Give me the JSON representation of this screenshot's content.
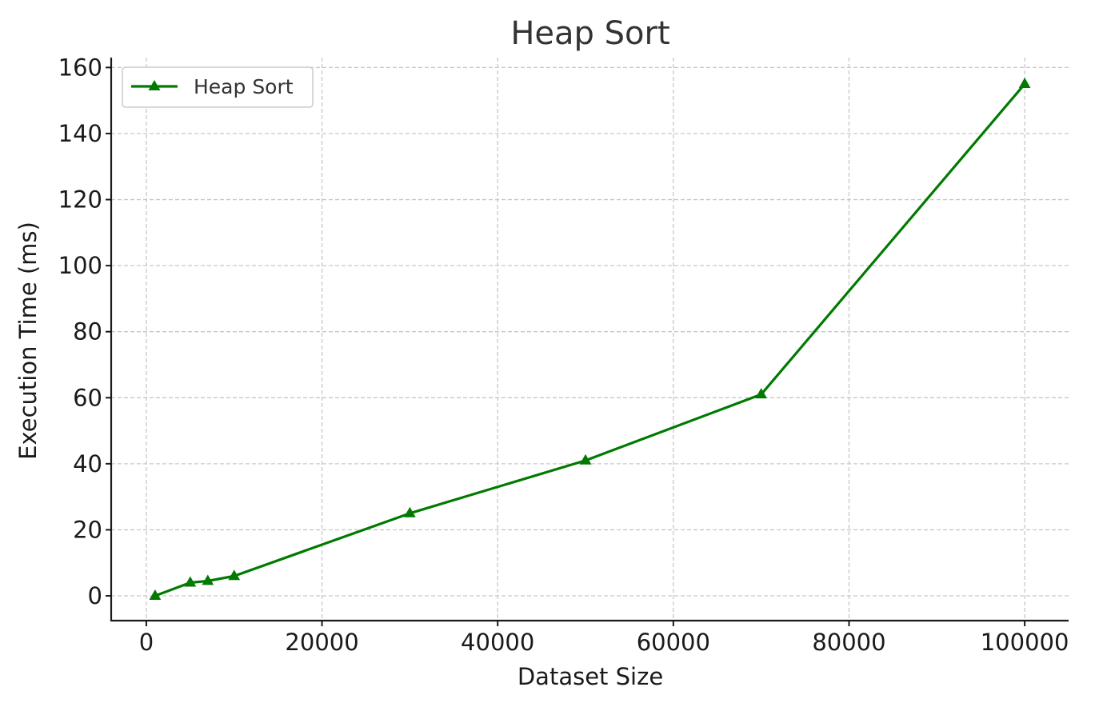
{
  "chart_data": {
    "type": "line",
    "title": "Heap Sort",
    "xlabel": "Dataset Size",
    "ylabel": "Execution Time (ms)",
    "xlim": [
      -4000,
      105000
    ],
    "ylim": [
      -7.5,
      163
    ],
    "xticks": [
      0,
      20000,
      40000,
      60000,
      80000,
      100000
    ],
    "xtick_labels": [
      "0",
      "20000",
      "40000",
      "60000",
      "80000",
      "100000"
    ],
    "yticks": [
      0,
      20,
      40,
      60,
      80,
      100,
      120,
      140,
      160
    ],
    "ytick_labels": [
      "0",
      "20",
      "40",
      "60",
      "80",
      "100",
      "120",
      "140",
      "160"
    ],
    "grid": true,
    "legend_position": "top-left",
    "series": [
      {
        "name": "Heap Sort",
        "color": "#007a00",
        "marker": "triangle-up",
        "x": [
          1000,
          5000,
          7000,
          10000,
          30000,
          50000,
          70000,
          100000
        ],
        "y": [
          0,
          4,
          4.5,
          6,
          25,
          41,
          61,
          155
        ]
      }
    ]
  }
}
